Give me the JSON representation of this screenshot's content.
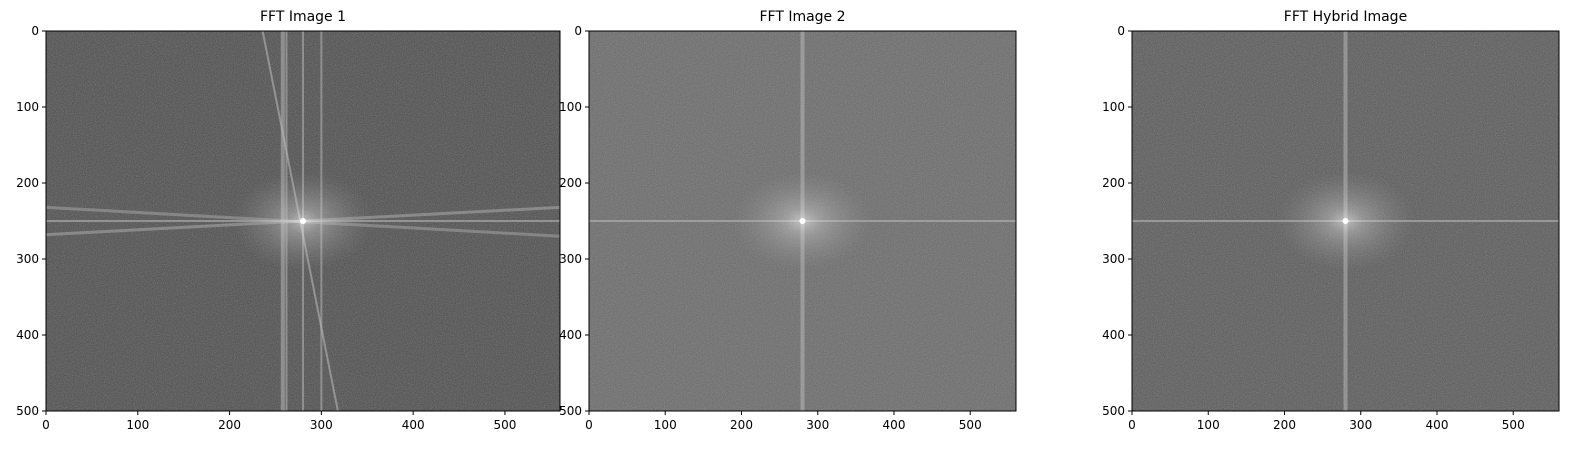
{
  "chart_data": [
    {
      "type": "heatmap",
      "title": "FFT Image 1",
      "xlim": [
        0,
        560
      ],
      "ylim": [
        500,
        0
      ],
      "xticks": [
        "0",
        "100",
        "200",
        "300",
        "400",
        "500"
      ],
      "yticks": [
        "0",
        "100",
        "200",
        "300",
        "400",
        "500"
      ],
      "xtick_values": [
        0,
        100,
        200,
        300,
        400,
        500
      ],
      "ytick_values": [
        0,
        100,
        200,
        300,
        400,
        500
      ],
      "center": [
        280,
        250
      ],
      "colormap": "gray",
      "features": {
        "vertical_streak_x": [
          258,
          262,
          280,
          300
        ],
        "horizontal_streak_y": [
          250
        ],
        "tilted_streaks": true
      }
    },
    {
      "type": "heatmap",
      "title": "FFT Image 2",
      "xlim": [
        0,
        560
      ],
      "ylim": [
        500,
        0
      ],
      "xticks": [
        "0",
        "100",
        "200",
        "300",
        "400",
        "500"
      ],
      "yticks": [
        "0",
        "100",
        "200",
        "300",
        "400",
        "500"
      ],
      "xtick_values": [
        0,
        100,
        200,
        300,
        400,
        500
      ],
      "ytick_values": [
        0,
        100,
        200,
        300,
        400,
        500
      ],
      "center": [
        280,
        250
      ],
      "colormap": "gray",
      "features": {
        "vertical_streak_x": [
          280
        ],
        "horizontal_streak_y": [
          250
        ],
        "tilted_streaks": false
      }
    },
    {
      "type": "heatmap",
      "title": "FFT Hybrid Image",
      "xlim": [
        0,
        560
      ],
      "ylim": [
        500,
        0
      ],
      "xticks": [
        "0",
        "100",
        "200",
        "300",
        "400",
        "500"
      ],
      "yticks": [
        "0",
        "100",
        "200",
        "300",
        "400",
        "500"
      ],
      "xtick_values": [
        0,
        100,
        200,
        300,
        400,
        500
      ],
      "ytick_values": [
        0,
        100,
        200,
        300,
        400,
        500
      ],
      "center": [
        280,
        250
      ],
      "colormap": "gray",
      "features": {
        "vertical_streak_x": [
          280
        ],
        "horizontal_streak_y": [
          250
        ],
        "tilted_streaks": false
      }
    }
  ],
  "colors": {
    "background_image1": "#4e4e4e",
    "background_image2": "#6a6a6a",
    "background_hybrid": "#5a5a5a",
    "streak": "#bdbdbd",
    "center": "#ffffff"
  }
}
